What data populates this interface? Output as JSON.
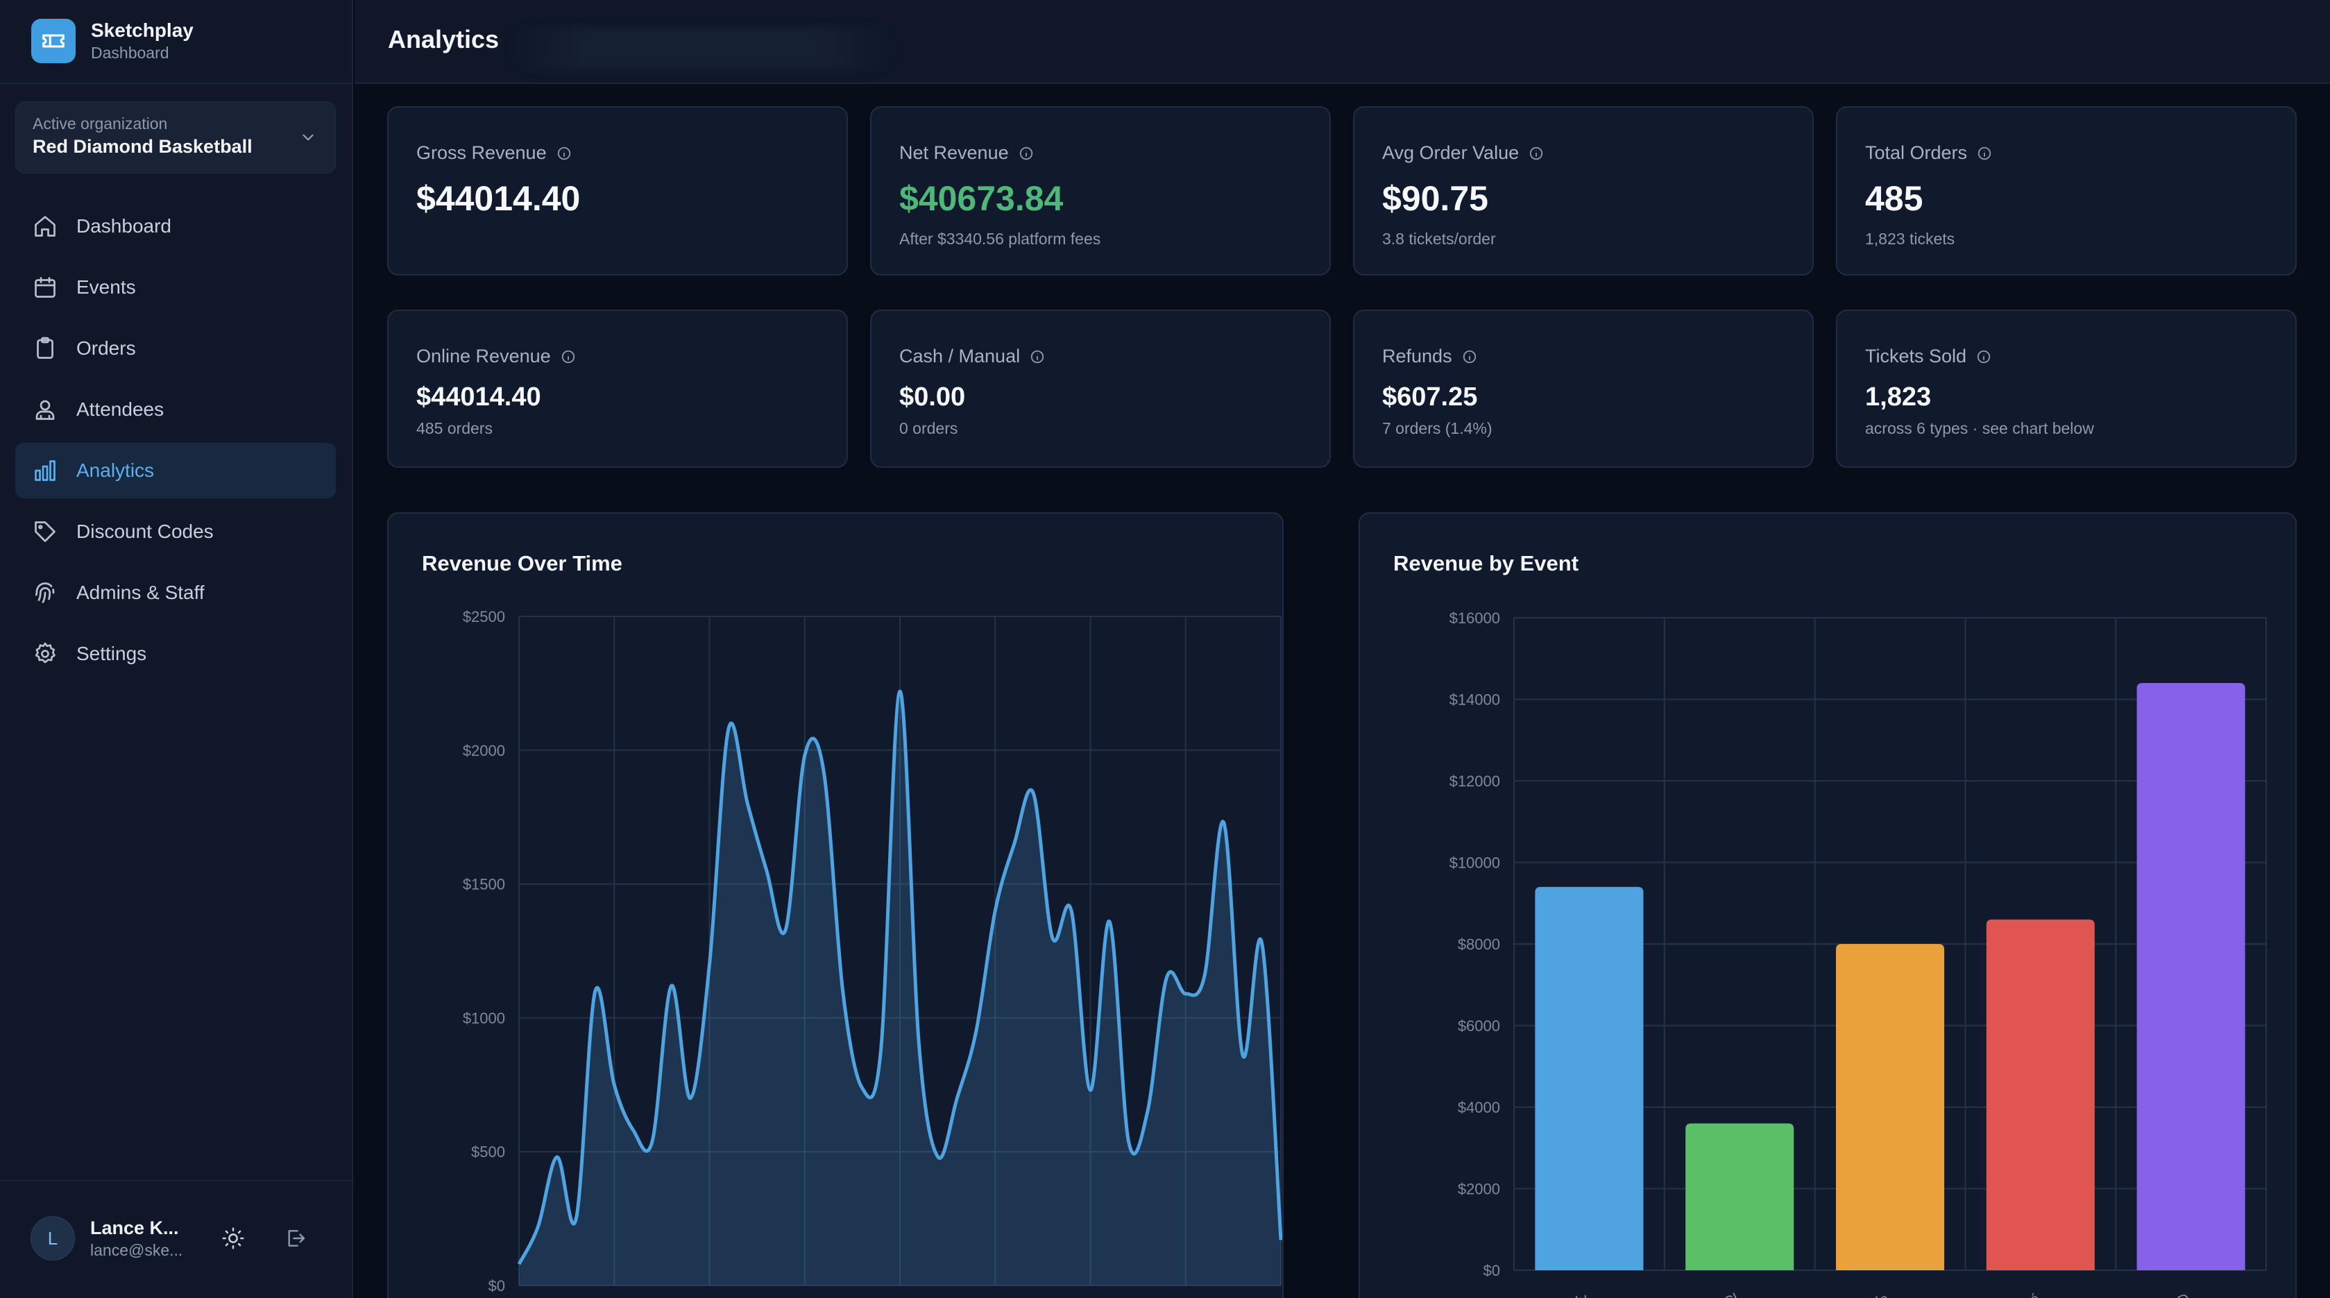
{
  "brand": {
    "name": "Sketchplay",
    "subtitle": "Dashboard"
  },
  "org": {
    "label": "Active organization",
    "name": "Red Diamond Basketball"
  },
  "nav": [
    {
      "label": "Dashboard",
      "icon": "home-icon",
      "active": false
    },
    {
      "label": "Events",
      "icon": "calendar-icon",
      "active": false
    },
    {
      "label": "Orders",
      "icon": "clipboard-icon",
      "active": false
    },
    {
      "label": "Attendees",
      "icon": "user-icon",
      "active": false
    },
    {
      "label": "Analytics",
      "icon": "bar-chart-icon",
      "active": true
    },
    {
      "label": "Discount Codes",
      "icon": "tag-icon",
      "active": false
    },
    {
      "label": "Admins & Staff",
      "icon": "fingerprint-icon",
      "active": false
    },
    {
      "label": "Settings",
      "icon": "gear-icon",
      "active": false
    }
  ],
  "user": {
    "initial": "L",
    "name": "Lance K...",
    "email": "lance@ske..."
  },
  "header": {
    "title": "Analytics"
  },
  "stats": [
    {
      "label": "Gross Revenue",
      "value": "$44014.40",
      "sub": "",
      "accent": "#f6f8fb"
    },
    {
      "label": "Net Revenue",
      "value": "$40673.84",
      "sub": "After $3340.56 platform fees",
      "accent": "#4fb878"
    },
    {
      "label": "Avg Order Value",
      "value": "$90.75",
      "sub": "3.8 tickets/order",
      "accent": "#f6f8fb"
    },
    {
      "label": "Total Orders",
      "value": "485",
      "sub": "1,823 tickets",
      "accent": "#f6f8fb"
    },
    {
      "label": "Online Revenue",
      "value": "$44014.40",
      "sub": "485 orders",
      "accent": "#f6f8fb"
    },
    {
      "label": "Cash / Manual",
      "value": "$0.00",
      "sub": "0 orders",
      "accent": "#f6f8fb"
    },
    {
      "label": "Refunds",
      "value": "$607.25",
      "sub": "7 orders (1.4%)",
      "accent": "#f6f8fb"
    },
    {
      "label": "Tickets Sold",
      "value": "1,823",
      "sub": "across 6 types · see chart below",
      "accent": "#f6f8fb"
    }
  ],
  "charts": {
    "revenue_title": "Revenue Over Time",
    "event_title": "Revenue by Event"
  },
  "chart_data": [
    {
      "type": "area",
      "title": "Revenue Over Time",
      "xlabel": "",
      "ylabel": "",
      "ylim": [
        0,
        2500
      ],
      "yticks": [
        "$0",
        "$500",
        "$1000",
        "$1500",
        "$2000",
        "$2500"
      ],
      "grid": true,
      "color": "#4ea3e0",
      "values": [
        80,
        220,
        480,
        250,
        1100,
        750,
        580,
        540,
        1120,
        700,
        1200,
        2080,
        1800,
        1550,
        1330,
        1980,
        1920,
        1100,
        740,
        880,
        2220,
        900,
        480,
        700,
        950,
        1400,
        1650,
        1840,
        1300,
        1400,
        730,
        1360,
        540,
        650,
        1150,
        1090,
        1160,
        1730,
        860,
        1280,
        170
      ]
    },
    {
      "type": "bar",
      "title": "Revenue by Event",
      "xlabel": "",
      "ylabel": "",
      "ylim": [
        0,
        16000
      ],
      "yticks": [
        "$0",
        "$2000",
        "$4000",
        "$6000",
        "$8000",
        "$10000",
        "$12000",
        "$14000",
        "$16000"
      ],
      "grid": true,
      "categories": [
        "July",
        "Cl",
        "Cla",
        "asé",
        "LD"
      ],
      "values": [
        9400,
        3600,
        8000,
        8600,
        14400
      ],
      "colors": [
        "#4ea3e0",
        "#5bbf67",
        "#eaa03b",
        "#e05550",
        "#8562e8"
      ]
    }
  ]
}
